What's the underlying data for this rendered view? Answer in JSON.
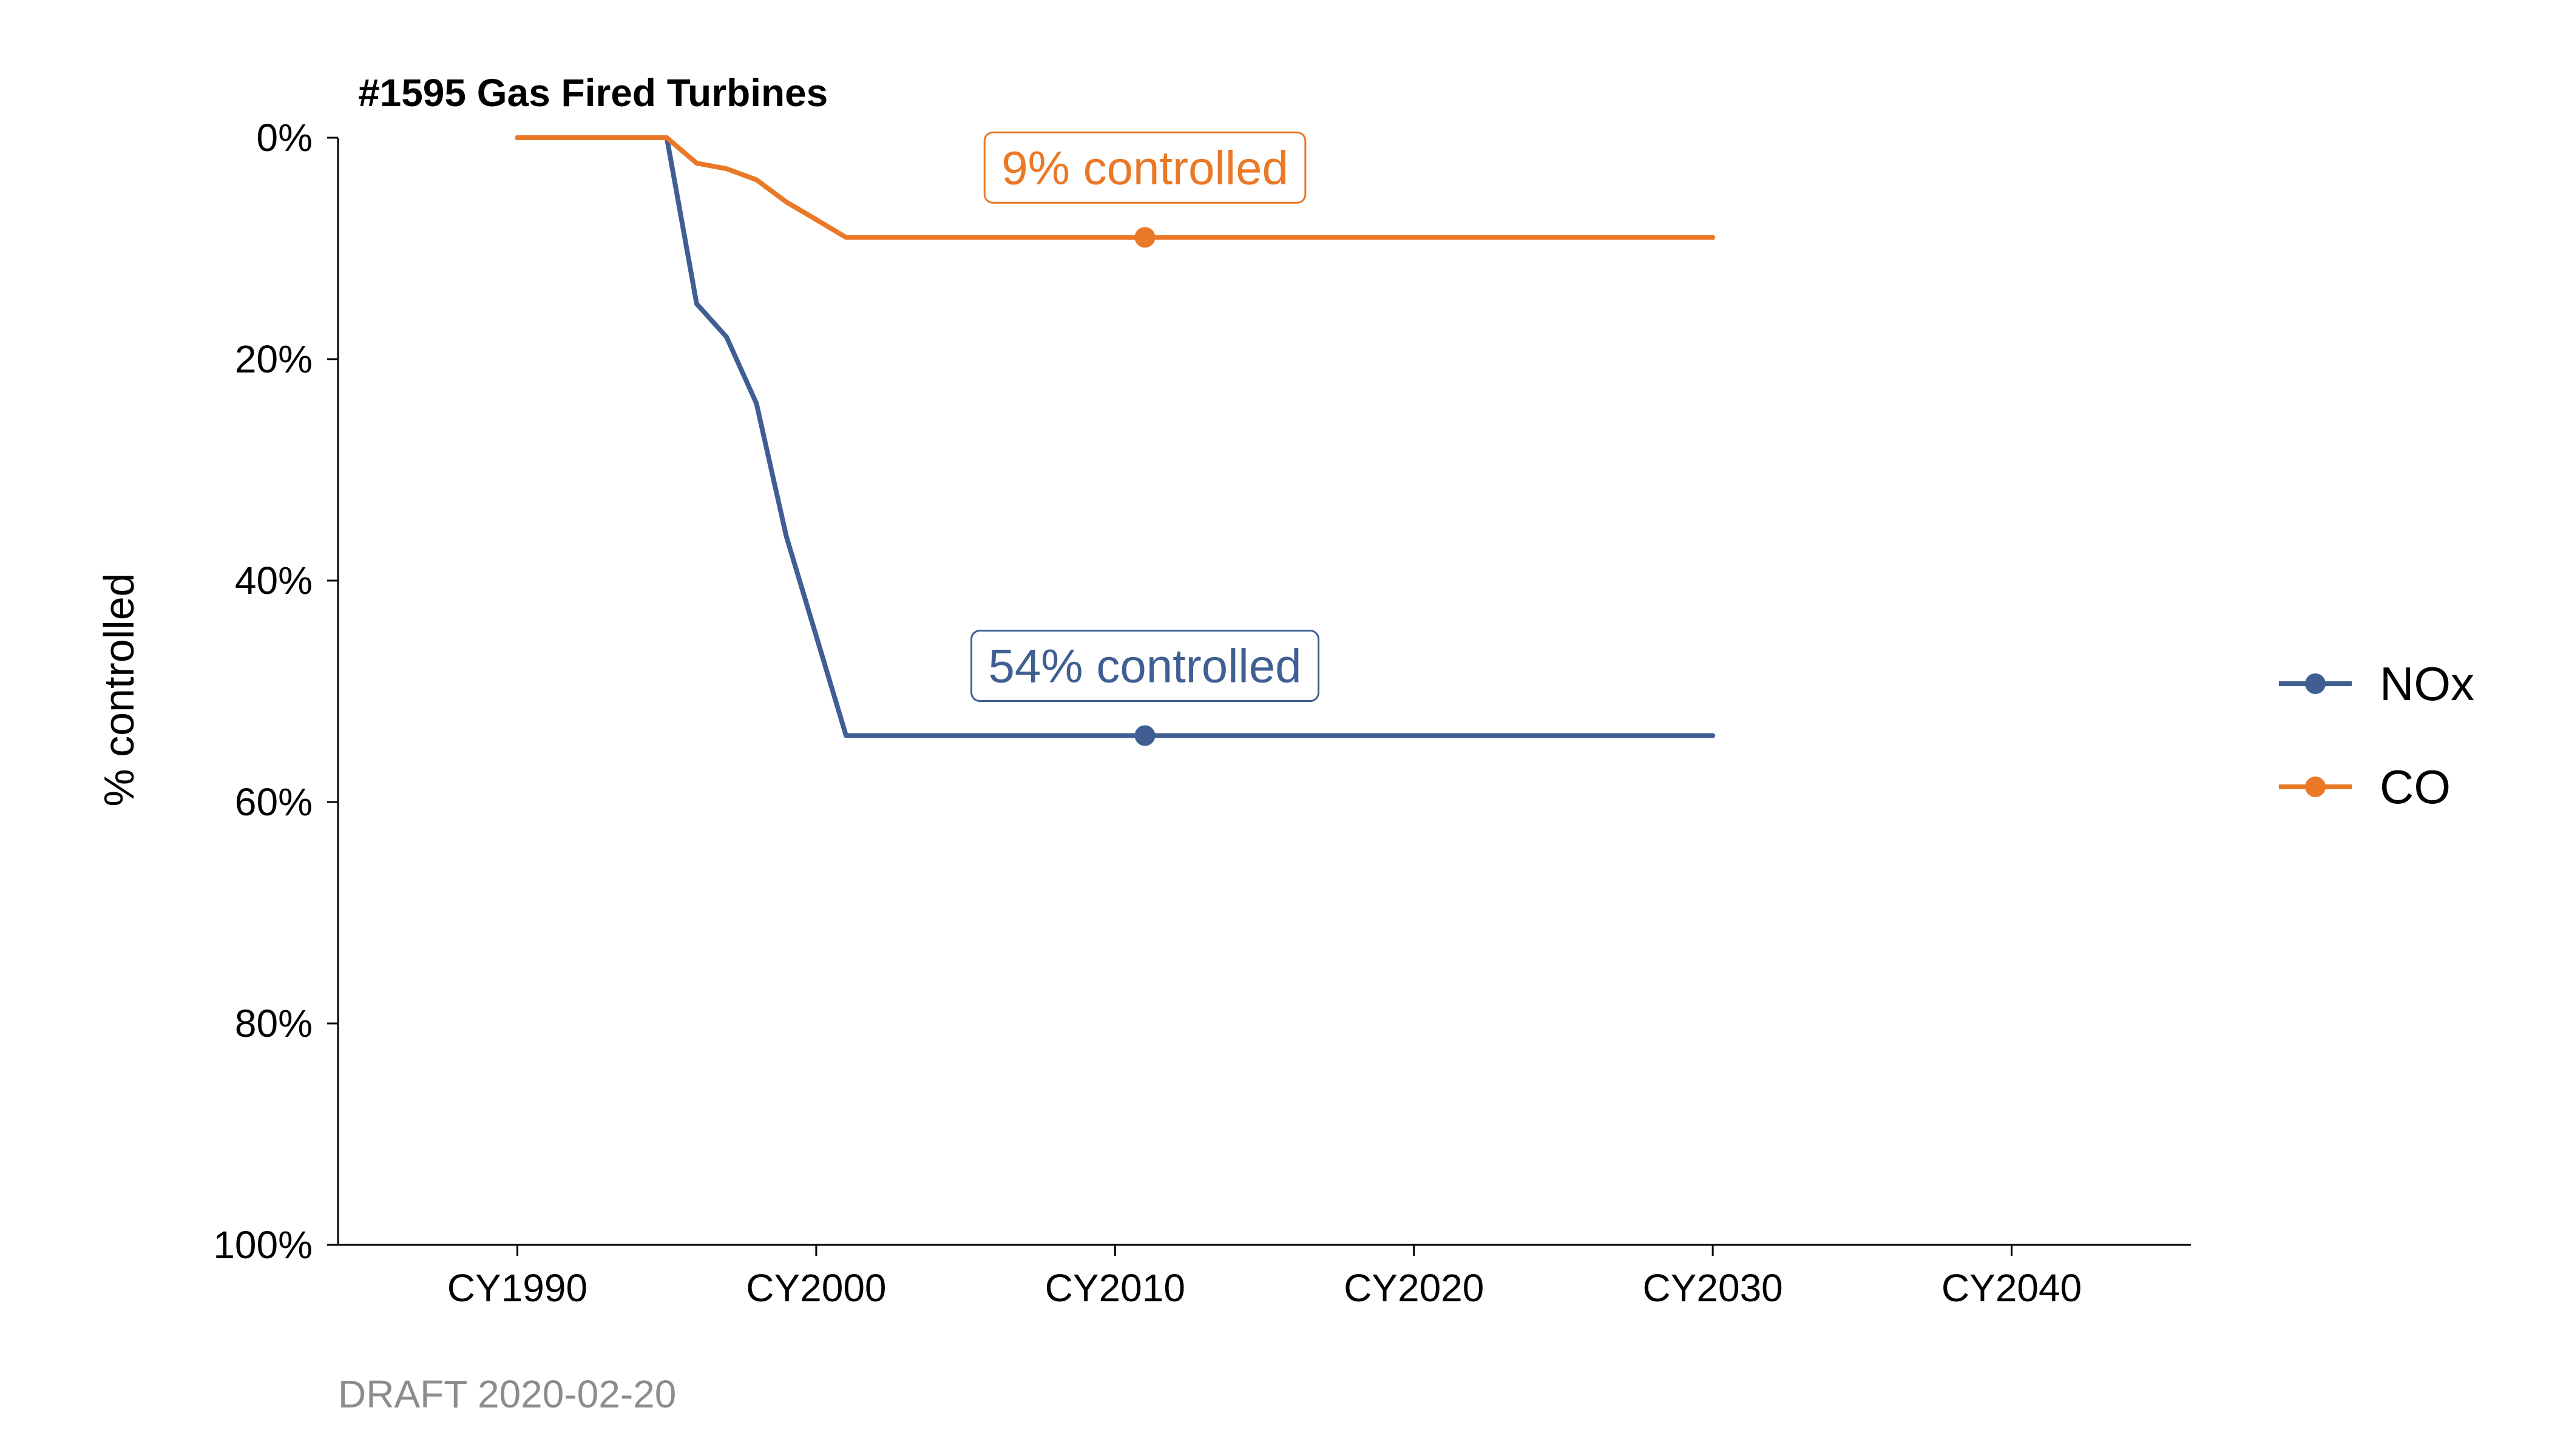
{
  "chart_data": {
    "type": "line",
    "title": "#1595 Gas Fired Turbines",
    "ylabel": "% controlled",
    "xlabel": "",
    "caption": "DRAFT 2020-02-20",
    "y_reversed": true,
    "ylim": [
      0,
      1
    ],
    "xlim": [
      1984,
      2046
    ],
    "y_ticks": [
      {
        "value": 0,
        "label": "0%"
      },
      {
        "value": 0.2,
        "label": "20%"
      },
      {
        "value": 0.4,
        "label": "40%"
      },
      {
        "value": 0.6,
        "label": "60%"
      },
      {
        "value": 0.8,
        "label": "80%"
      },
      {
        "value": 1.0,
        "label": "100%"
      }
    ],
    "x_ticks": [
      {
        "value": 1990,
        "label": "CY1990"
      },
      {
        "value": 2000,
        "label": "CY2000"
      },
      {
        "value": 2010,
        "label": "CY2010"
      },
      {
        "value": 2020,
        "label": "CY2020"
      },
      {
        "value": 2030,
        "label": "CY2030"
      },
      {
        "value": 2040,
        "label": "CY2040"
      }
    ],
    "legend_position": "right",
    "series": [
      {
        "name": "NOx",
        "color": "#3f5f93",
        "x": [
          1990,
          1995,
          1996,
          1997,
          1998,
          1999,
          2000,
          2001,
          2010,
          2030
        ],
        "y": [
          0,
          0,
          0.15,
          0.18,
          0.24,
          0.36,
          0.45,
          0.54,
          0.54,
          0.54
        ],
        "highlight": {
          "x": 2011,
          "y": 0.54,
          "label": "54% controlled"
        }
      },
      {
        "name": "CO",
        "color": "#ea7826",
        "x": [
          1990,
          1995,
          1996,
          1997,
          1998,
          1999,
          2000,
          2001,
          2010,
          2030
        ],
        "y": [
          0,
          0,
          0.023,
          0.028,
          0.038,
          0.058,
          0.074,
          0.09,
          0.09,
          0.09
        ],
        "highlight": {
          "x": 2011,
          "y": 0.09,
          "label": "9% controlled"
        }
      }
    ]
  }
}
